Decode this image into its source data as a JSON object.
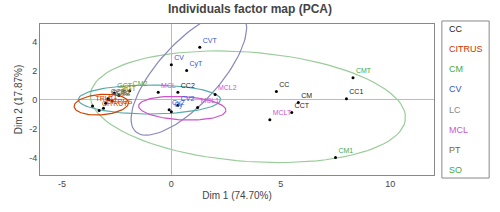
{
  "chart_data": {
    "type": "scatter",
    "title": "Individuals factor map (PCA)",
    "xlabel": "Dim 1 (74.70%)",
    "ylabel": "Dim 2 (17.87%)",
    "xlim": [
      -6,
      12
    ],
    "ylim": [
      -5.2,
      5.2
    ],
    "xticks": [
      -5,
      0,
      5,
      10
    ],
    "yticks": [
      -4,
      -2,
      0,
      2,
      4
    ],
    "grid": false,
    "color": "#000000",
    "points": [
      {
        "label": "CVT",
        "x": 1.3,
        "y": 3.6,
        "color": "#3355cc"
      },
      {
        "label": "CV",
        "x": 0.0,
        "y": 2.4,
        "color": "#3355cc"
      },
      {
        "label": "CyT",
        "x": 0.7,
        "y": 2.0,
        "color": "#3355cc"
      },
      {
        "label": "CMT",
        "x": 8.3,
        "y": 1.5,
        "color": "#44aa44"
      },
      {
        "label": "CC",
        "x": 4.8,
        "y": 0.55,
        "color": "#222222"
      },
      {
        "label": "CC1",
        "x": 8.0,
        "y": 0.05,
        "color": "#222222"
      },
      {
        "label": "CM",
        "x": 5.8,
        "y": -0.2,
        "color": "#222222"
      },
      {
        "label": "CCT",
        "x": 5.5,
        "y": -0.9,
        "color": "#222222"
      },
      {
        "label": "MCLT",
        "x": 4.5,
        "y": -1.4,
        "color": "#cc55cc"
      },
      {
        "label": "CM1",
        "x": 7.5,
        "y": -4.0,
        "color": "#44aa44"
      },
      {
        "label": "CM2",
        "x": -1.9,
        "y": 0.6,
        "color": "#44aa44"
      },
      {
        "label": "MCL",
        "x": -0.6,
        "y": 0.5,
        "color": "#cc55cc"
      },
      {
        "label": "CC2",
        "x": 0.3,
        "y": 0.5,
        "color": "#222222"
      },
      {
        "label": "MCL2",
        "x": 2.0,
        "y": 0.35,
        "color": "#cc55cc"
      },
      {
        "label": "MCL1",
        "x": 1.2,
        "y": -0.55,
        "color": "#cc55cc"
      },
      {
        "label": "CV2",
        "x": 0.3,
        "y": -0.4,
        "color": "#3355cc"
      },
      {
        "label": "SGT",
        "x": -2.4,
        "y": 0.3,
        "color": "#888800"
      },
      {
        "label": "CCB",
        "x": -2.9,
        "y": 0.05,
        "color": "#555555"
      },
      {
        "label": "GCB",
        "x": -2.7,
        "y": -0.1,
        "color": "#888800"
      },
      {
        "label": "TRU1",
        "x": -3.6,
        "y": -0.45,
        "color": "#cc3300"
      },
      {
        "label": "CITRUS",
        "x": -3.1,
        "y": -0.6,
        "color": "#cc3300"
      },
      {
        "label": "CITRUT",
        "x": -3.3,
        "y": -0.75,
        "color": "#cc3300"
      },
      {
        "label": "P1",
        "x": -3.0,
        "y": -0.25,
        "color": "#cc3300"
      },
      {
        "label": "Cy",
        "x": 0.0,
        "y": -0.85,
        "color": "#3355cc"
      },
      {
        "label": "GCT",
        "x": -2.6,
        "y": 0.45,
        "color": "#888800"
      },
      {
        "label": "CCB2",
        "x": -2.85,
        "y": -0.0,
        "color": "#555555"
      },
      {
        "label": "Cy2",
        "x": -0.1,
        "y": -0.7,
        "color": "#3355cc"
      }
    ],
    "legend_items": [
      {
        "label": "CC",
        "color": "#222222"
      },
      {
        "label": "CITRUS",
        "color": "#cc3300"
      },
      {
        "label": "CM",
        "color": "#44aa44"
      },
      {
        "label": "CV",
        "color": "#3355cc"
      },
      {
        "label": "LC",
        "color": "#888888"
      },
      {
        "label": "MCL",
        "color": "#cc55cc"
      },
      {
        "label": "PT",
        "color": "#886600"
      },
      {
        "label": "SO",
        "color": "#44aa44"
      }
    ],
    "ellipses": [
      {
        "cx": 3.5,
        "cy": -0.5,
        "width": 14.5,
        "height": 7.5,
        "angle": -8,
        "color": "#99cc99"
      },
      {
        "cx": 0.8,
        "cy": 1.8,
        "width": 3.2,
        "height": 9.5,
        "angle": -28,
        "color": "#8888bb"
      },
      {
        "cx": -1.0,
        "cy": 0.0,
        "width": 6.5,
        "height": 2.0,
        "angle": 0,
        "color": "#55aaaa"
      },
      {
        "cx": 0.5,
        "cy": -0.6,
        "width": 4.0,
        "height": 1.6,
        "angle": -5,
        "color": "#cc55cc"
      },
      {
        "cx": -3.2,
        "cy": -0.35,
        "width": 2.5,
        "height": 1.4,
        "angle": 8,
        "color": "#cc4400"
      }
    ]
  }
}
